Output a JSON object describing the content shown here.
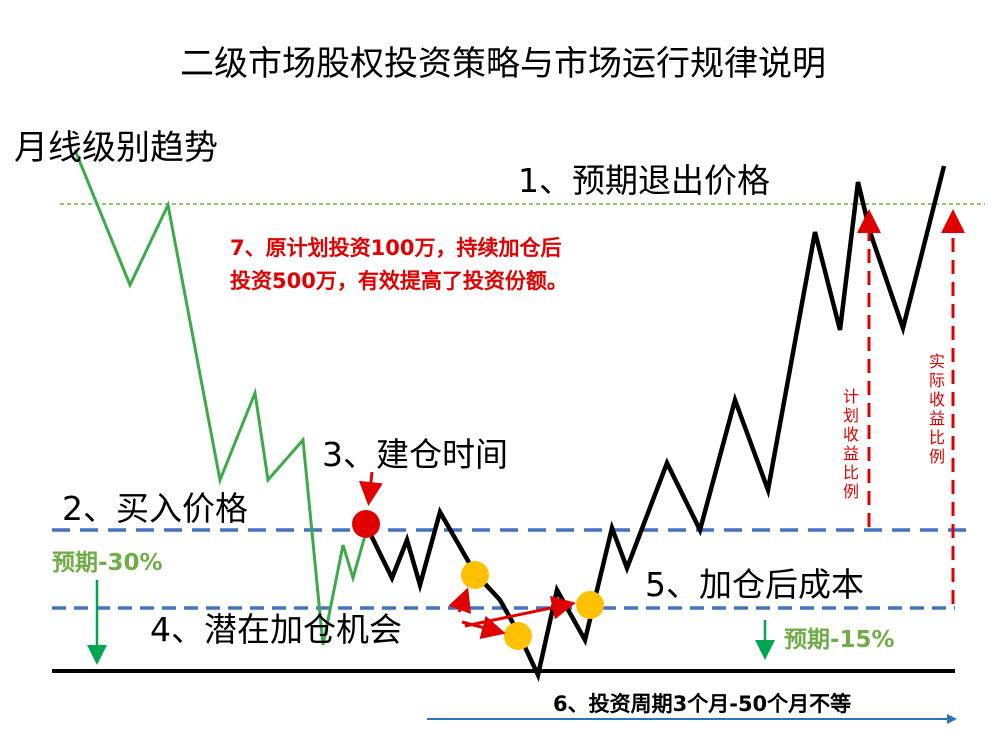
{
  "title": "二级市场股权投资策略与市场运行规律说明",
  "labels": {
    "monthly_trend": "月线级别趋势",
    "exit_price": "1、预期退出价格",
    "note_7": "7、原计划投资100万，持续加仓后投资500万，有效提高了投资份额。",
    "build_time": "3、建仓时间",
    "buy_price": "2、买入价格",
    "expect_minus30": "预期-30%",
    "cost_after_add": "5、加仓后成本",
    "potential_add": "4、潜在加仓机会",
    "expect_minus15": "预期-15%",
    "period": "6、投资周期3个月-50个月不等",
    "planned_ratio": "计划收益比例",
    "actual_ratio": "实际收益比例"
  },
  "colors": {
    "green_line": "#3daa4a",
    "green_text": "#70ad47",
    "red": "#e00000",
    "blue_dash": "#4472c4",
    "orange_dot": "#ffc000",
    "arrow_blue": "#2e75b6"
  }
}
